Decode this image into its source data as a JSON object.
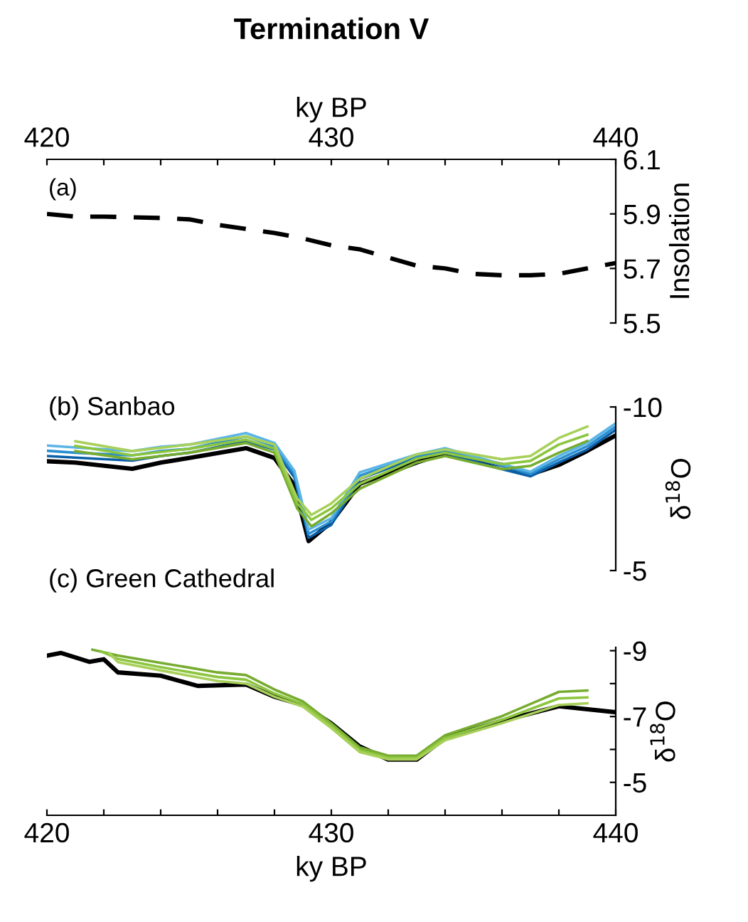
{
  "chart_data": [
    {
      "type": "line",
      "title": "Termination V",
      "annotations": [
        "(a)"
      ],
      "xlabel": "ky BP",
      "xlim": [
        420,
        440
      ],
      "xticks": [
        420,
        {
          "value": 422,
          "label": null
        },
        {
          "value": 424,
          "label": null
        },
        {
          "value": 426,
          "label": null
        },
        {
          "value": 428,
          "label": null
        },
        430,
        {
          "value": 432,
          "label": null
        },
        {
          "value": 434,
          "label": null
        },
        {
          "value": 436,
          "label": null
        },
        {
          "value": 438,
          "label": null
        },
        440
      ],
      "ylabel": "Insolation",
      "ylim": [
        5.5,
        6.1
      ],
      "yticks": [
        5.5,
        5.7,
        5.9,
        6.1
      ],
      "line_style": "dashed",
      "grid": false,
      "legend": false,
      "series": [
        {
          "color": "#000000",
          "x": [
            420,
            421,
            422,
            424,
            425,
            426,
            428,
            429,
            430,
            431,
            432,
            433,
            434,
            435,
            436,
            437,
            438,
            439,
            440
          ],
          "values": [
            5.9,
            5.89,
            5.89,
            5.885,
            5.88,
            5.86,
            5.83,
            5.81,
            5.785,
            5.77,
            5.74,
            5.71,
            5.7,
            5.68,
            5.675,
            5.675,
            5.68,
            5.7,
            5.72
          ]
        }
      ]
    },
    {
      "type": "line",
      "title": "(b) Sanbao",
      "xlim": [
        420,
        440
      ],
      "tick_labels": "y",
      "ylabel": "δ$^{18}$O",
      "ylim": [
        -5,
        -10
      ],
      "yticks": [
        -10,
        -5
      ],
      "line_style": "solid",
      "grid": false,
      "legend": false,
      "series": [
        {
          "color": "#000000",
          "x": [
            420,
            421,
            423,
            424,
            425,
            427,
            428,
            428.7,
            429.2,
            430,
            431,
            433,
            434,
            436,
            437,
            438,
            439,
            440
          ],
          "values": [
            -8.34,
            -8.3,
            -8.11,
            -8.3,
            -8.44,
            -8.74,
            -8.44,
            -7.6,
            -5.9,
            -6.48,
            -7.65,
            -8.3,
            -8.59,
            -8.23,
            -7.94,
            -8.23,
            -8.66,
            -9.13
          ]
        },
        {
          "color": "#0a5fa8",
          "x": [
            420,
            421,
            423,
            424,
            425,
            427,
            428,
            428.7,
            429.2,
            430,
            431,
            433,
            434,
            436,
            437,
            438,
            439,
            440
          ],
          "values": [
            -8.5,
            -8.45,
            -8.36,
            -8.5,
            -8.6,
            -8.95,
            -8.7,
            -7.85,
            -6.0,
            -6.4,
            -7.8,
            -8.45,
            -8.6,
            -8.1,
            -7.88,
            -8.3,
            -8.7,
            -9.3
          ]
        },
        {
          "color": "#2a8fd0",
          "x": [
            420,
            421,
            423,
            424,
            425,
            427,
            428,
            428.7,
            429.2,
            430,
            431,
            433,
            434,
            436,
            437,
            438,
            439,
            440
          ],
          "values": [
            -8.66,
            -8.6,
            -8.52,
            -8.65,
            -8.72,
            -9.1,
            -8.8,
            -7.95,
            -6.12,
            -6.5,
            -7.9,
            -8.5,
            -8.68,
            -8.2,
            -7.95,
            -8.4,
            -8.8,
            -9.4
          ]
        },
        {
          "color": "#5ab4e6",
          "x": [
            420,
            421,
            423,
            424,
            425,
            427,
            428,
            428.7,
            429.2,
            430,
            431,
            433,
            434,
            436,
            437,
            438,
            439,
            440
          ],
          "values": [
            -8.82,
            -8.76,
            -8.65,
            -8.78,
            -8.85,
            -9.2,
            -8.9,
            -8.05,
            -6.25,
            -6.6,
            -8.0,
            -8.55,
            -8.74,
            -8.25,
            -8.02,
            -8.5,
            -8.9,
            -9.5
          ]
        },
        {
          "color": "#77ac30",
          "x": [
            421,
            423,
            425,
            427,
            428,
            428.8,
            429.3,
            430,
            431,
            433,
            434,
            436,
            437,
            438,
            439
          ],
          "values": [
            -8.65,
            -8.4,
            -8.6,
            -8.9,
            -8.6,
            -6.9,
            -6.35,
            -6.75,
            -7.5,
            -8.3,
            -8.5,
            -8.1,
            -8.2,
            -8.6,
            -8.96
          ]
        },
        {
          "color": "#8cc63f",
          "x": [
            421,
            423,
            425,
            427,
            428,
            428.8,
            429.3,
            430,
            431,
            433,
            434,
            436,
            437,
            438,
            439
          ],
          "values": [
            -8.81,
            -8.52,
            -8.72,
            -9.0,
            -8.72,
            -7.05,
            -6.55,
            -6.9,
            -7.65,
            -8.42,
            -8.6,
            -8.25,
            -8.35,
            -8.85,
            -9.15
          ]
        },
        {
          "color": "#a8d05a",
          "x": [
            421,
            423,
            425,
            427,
            428,
            428.8,
            429.3,
            430,
            431,
            433,
            434,
            436,
            437,
            438,
            439
          ],
          "values": [
            -8.95,
            -8.65,
            -8.85,
            -9.1,
            -8.85,
            -7.2,
            -6.7,
            -7.05,
            -7.8,
            -8.55,
            -8.7,
            -8.4,
            -8.5,
            -9.05,
            -9.4
          ]
        }
      ]
    },
    {
      "type": "line",
      "title": "(c) Green Cathedral",
      "xlabel": "ky BP",
      "xlim": [
        420,
        440
      ],
      "xticks": [
        420,
        {
          "value": 422,
          "label": null
        },
        {
          "value": 424,
          "label": null
        },
        {
          "value": 426,
          "label": null
        },
        {
          "value": 428,
          "label": null
        },
        430,
        {
          "value": 432,
          "label": null
        },
        {
          "value": 434,
          "label": null
        },
        {
          "value": 436,
          "label": null
        },
        {
          "value": 438,
          "label": null
        },
        440
      ],
      "ylabel": "δ$^{18}$O",
      "ylim": [
        -4,
        -9.1
      ],
      "yticks": [
        -9,
        {
          "value": -8,
          "label": null
        },
        -7,
        {
          "value": -6,
          "label": null
        },
        -5
      ],
      "line_style": "solid",
      "grid": false,
      "legend": false,
      "series": [
        {
          "color": "#000000",
          "x": [
            420,
            420.5,
            421.5,
            422,
            422.5,
            424,
            425.3,
            427,
            428,
            429,
            430,
            431,
            432,
            433,
            434,
            436,
            438,
            440
          ],
          "values": [
            -8.85,
            -8.93,
            -8.66,
            -8.74,
            -8.34,
            -8.24,
            -7.93,
            -7.97,
            -7.6,
            -7.35,
            -6.79,
            -6.09,
            -5.69,
            -5.69,
            -6.35,
            -6.87,
            -7.31,
            -7.13
          ]
        },
        {
          "color": "#77ac30",
          "x": [
            421.6,
            422.5,
            424,
            426,
            427,
            428,
            429,
            430,
            431,
            432,
            433,
            434,
            436,
            438,
            439
          ],
          "values": [
            -9.03,
            -8.85,
            -8.63,
            -8.34,
            -8.26,
            -7.82,
            -7.46,
            -6.79,
            -6.06,
            -5.81,
            -5.81,
            -6.43,
            -7.01,
            -7.75,
            -7.79
          ]
        },
        {
          "color": "#8cc63f",
          "x": [
            421.9,
            422.5,
            424,
            426,
            427,
            428,
            429,
            430,
            431,
            432,
            433,
            434,
            436,
            438,
            439
          ],
          "values": [
            -8.98,
            -8.75,
            -8.5,
            -8.2,
            -8.12,
            -7.7,
            -7.38,
            -6.72,
            -5.98,
            -5.75,
            -5.75,
            -6.35,
            -6.9,
            -7.55,
            -7.58
          ]
        },
        {
          "color": "#a8d05a",
          "x": [
            422.2,
            422.5,
            424,
            426,
            427,
            428,
            429,
            430,
            431,
            432,
            433,
            434,
            436,
            438,
            439
          ],
          "values": [
            -8.92,
            -8.65,
            -8.4,
            -8.08,
            -8.0,
            -7.6,
            -7.3,
            -6.65,
            -5.92,
            -5.7,
            -5.7,
            -6.28,
            -6.8,
            -7.35,
            -7.4
          ]
        }
      ]
    }
  ]
}
